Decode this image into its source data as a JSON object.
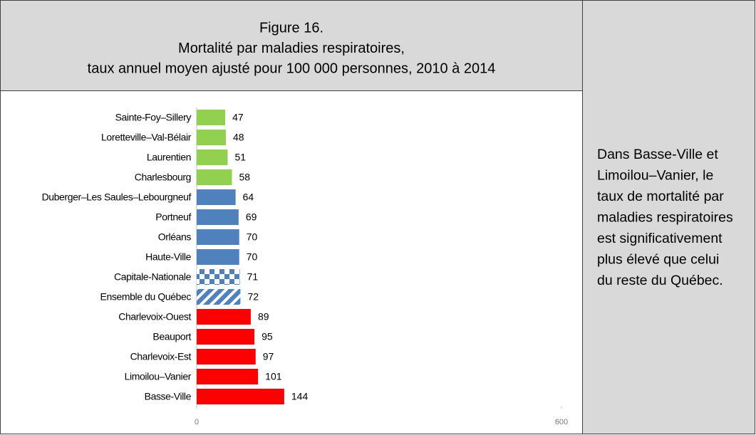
{
  "chart_data": {
    "type": "bar",
    "orientation": "horizontal",
    "title": [
      "Figure 16.",
      "Mortalité par maladies respiratoires,",
      "taux annuel moyen ajusté pour 100 000 personnes, 2010 à 2014"
    ],
    "categories": [
      "Sainte-Foy–Sillery",
      "Loretteville–Val-Bélair",
      "Laurentien",
      "Charlesbourg",
      "Duberger–Les Saules–Lebourgneuf",
      "Portneuf",
      "Orléans",
      "Haute-Ville",
      "Capitale-Nationale",
      "Ensemble du Québec",
      "Charlevoix-Ouest",
      "Beauport",
      "Charlevoix-Est",
      "Limoilou–Vanier",
      "Basse-Ville"
    ],
    "values": [
      47,
      48,
      51,
      58,
      64,
      69,
      70,
      70,
      71,
      72,
      89,
      95,
      97,
      101,
      144
    ],
    "colors": [
      "#92d050",
      "#92d050",
      "#92d050",
      "#92d050",
      "#4f81bd",
      "#4f81bd",
      "#4f81bd",
      "#4f81bd",
      "#4f81bd",
      "#4f81bd",
      "#ff0000",
      "#ff0000",
      "#ff0000",
      "#ff0000",
      "#ff0000"
    ],
    "fills": [
      "solid",
      "solid",
      "solid",
      "solid",
      "solid",
      "solid",
      "solid",
      "solid",
      "checker",
      "diagonal",
      "solid",
      "solid",
      "solid",
      "solid",
      "solid"
    ],
    "xlim": [
      0,
      600
    ],
    "xticks": [
      0,
      600
    ],
    "grid": false
  },
  "side_note": [
    "Dans Basse-Ville et",
    "Limoilou–Vanier, le",
    "taux de mortalité par",
    "maladies respiratoires",
    "est significativement",
    "plus élevé que celui",
    "du reste du Québec."
  ]
}
